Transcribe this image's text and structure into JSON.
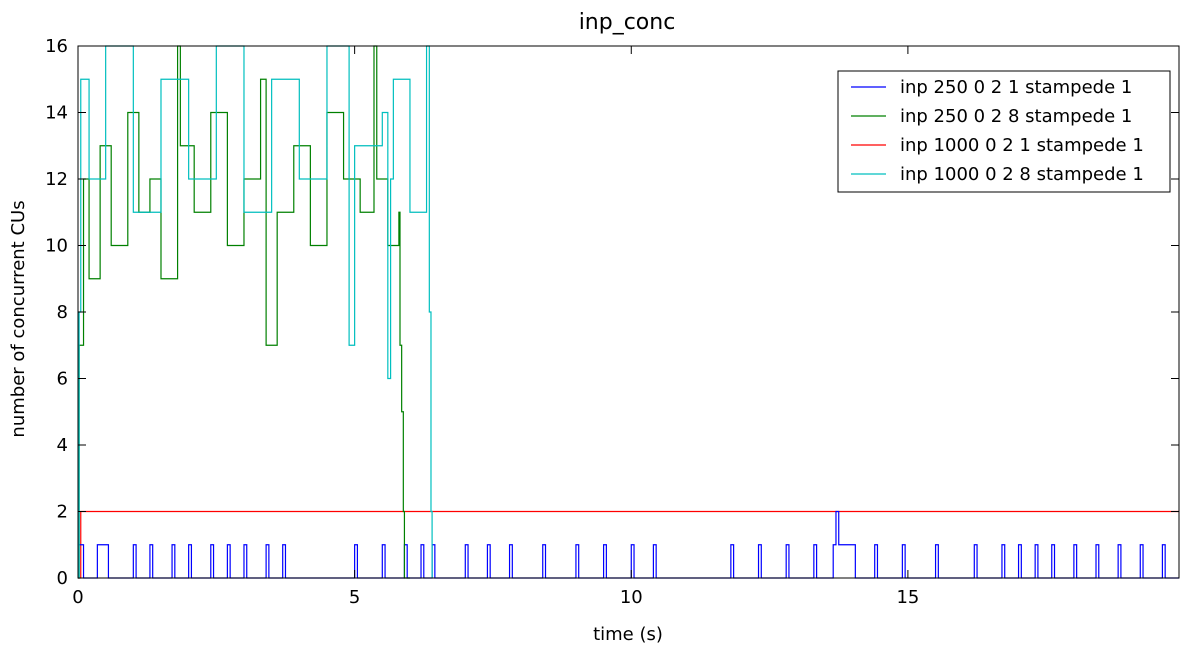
{
  "chart_data": {
    "type": "line",
    "title": "inp_conc",
    "xlabel": "time (s)",
    "ylabel": "number of concurrent CUs",
    "xlim": [
      0,
      19.9
    ],
    "ylim": [
      0,
      16
    ],
    "xticks": [
      0,
      5,
      10,
      15
    ],
    "yticks": [
      0,
      2,
      4,
      6,
      8,
      10,
      12,
      14,
      16
    ],
    "grid": false,
    "legend_position": "top-right",
    "series": [
      {
        "name": "inp 250 0 2 1 stampede 1",
        "color": "#0000ff",
        "x": [
          0,
          0.05,
          0.1,
          0.3,
          0.35,
          0.5,
          0.55,
          0.7,
          1.0,
          1.05,
          1.3,
          1.35,
          1.7,
          1.75,
          2.0,
          2.05,
          2.4,
          2.45,
          2.7,
          2.75,
          3.0,
          3.05,
          3.4,
          3.45,
          3.7,
          3.75,
          5.0,
          5.05,
          5.5,
          5.55,
          5.9,
          5.95,
          6.2,
          6.25,
          6.4,
          6.45,
          7.0,
          7.05,
          7.4,
          7.45,
          7.8,
          7.85,
          8.4,
          8.45,
          9.0,
          9.05,
          9.5,
          9.55,
          10.0,
          10.05,
          10.4,
          10.45,
          11.8,
          11.85,
          12.3,
          12.35,
          12.8,
          12.85,
          13.3,
          13.35,
          13.65,
          13.7,
          13.75,
          14.0,
          14.05,
          14.4,
          14.45,
          14.9,
          14.95,
          15.5,
          15.55,
          16.2,
          16.25,
          16.7,
          16.75,
          17.0,
          17.05,
          17.3,
          17.35,
          17.6,
          17.65,
          18.0,
          18.05,
          18.4,
          18.45,
          18.8,
          18.85,
          19.2,
          19.25,
          19.6,
          19.65,
          19.9
        ],
        "y": [
          1,
          1,
          0,
          0,
          1,
          1,
          0,
          0,
          1,
          0,
          1,
          0,
          1,
          0,
          1,
          0,
          1,
          0,
          1,
          0,
          1,
          0,
          1,
          0,
          1,
          0,
          1,
          0,
          1,
          0,
          1,
          0,
          1,
          0,
          1,
          0,
          1,
          0,
          1,
          0,
          1,
          0,
          1,
          0,
          1,
          0,
          1,
          0,
          1,
          0,
          1,
          0,
          1,
          0,
          1,
          0,
          1,
          0,
          1,
          0,
          1,
          2,
          1,
          1,
          0,
          1,
          0,
          1,
          0,
          1,
          0,
          1,
          0,
          1,
          0,
          1,
          0,
          1,
          0,
          1,
          0,
          1,
          0,
          1,
          0,
          1,
          0,
          1,
          0,
          1,
          0,
          0
        ]
      },
      {
        "name": "inp 250 0 2 8 stampede 1",
        "color": "#008000",
        "x": [
          0,
          0.02,
          0.1,
          0.2,
          0.4,
          0.6,
          0.9,
          1.1,
          1.3,
          1.5,
          1.8,
          1.85,
          2.1,
          2.4,
          2.7,
          3.0,
          3.3,
          3.4,
          3.6,
          3.9,
          4.2,
          4.5,
          4.8,
          5.1,
          5.35,
          5.4,
          5.6,
          5.8,
          5.82,
          5.85,
          5.88,
          5.9,
          6.0
        ],
        "y": [
          0,
          7,
          12,
          9,
          13,
          10,
          14,
          11,
          12,
          9,
          16,
          13,
          11,
          14,
          10,
          12,
          15,
          7,
          11,
          13,
          10,
          14,
          12,
          11,
          16,
          12,
          10,
          11,
          7,
          5,
          2,
          0,
          0
        ]
      },
      {
        "name": "inp 1000 0 2 1 stampede 1",
        "color": "#ff0000",
        "x": [
          0,
          0.05,
          19.9
        ],
        "y": [
          0,
          2,
          2
        ]
      },
      {
        "name": "inp 1000 0 2 8 stampede 1",
        "color": "#00bfbf",
        "x": [
          0,
          0.02,
          0.05,
          0.2,
          0.5,
          1.0,
          1.5,
          2.0,
          2.5,
          3.0,
          3.5,
          4.0,
          4.5,
          4.9,
          5.0,
          5.5,
          5.6,
          5.65,
          5.7,
          6.0,
          6.3,
          6.35,
          6.38,
          6.4
        ],
        "y": [
          0,
          8,
          15,
          12,
          16,
          11,
          15,
          12,
          16,
          11,
          15,
          12,
          16,
          7,
          13,
          14,
          6,
          12,
          15,
          11,
          16,
          8,
          2,
          0
        ]
      }
    ]
  }
}
